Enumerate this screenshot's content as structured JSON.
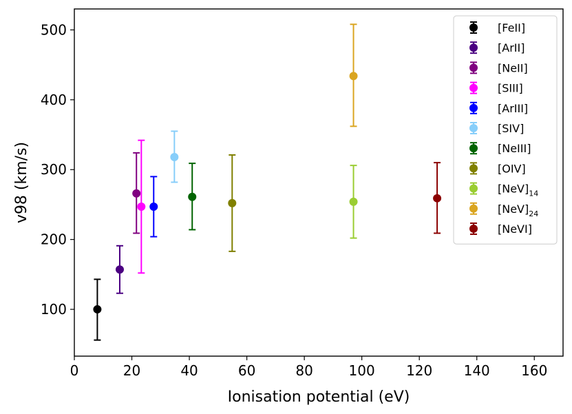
{
  "chart_data": {
    "type": "scatter",
    "title": "",
    "xlabel": "Ionisation potential (eV)",
    "ylabel": "v98 (km/s)",
    "xlim": [
      0,
      170
    ],
    "ylim": [
      33,
      530
    ],
    "xticks": [
      0,
      20,
      40,
      60,
      80,
      100,
      120,
      140,
      160
    ],
    "yticks": [
      100,
      200,
      300,
      400,
      500
    ],
    "grid": false,
    "legend_position": "top-right",
    "series": [
      {
        "name": "[FeII]",
        "sub": "",
        "color": "#000000",
        "x": 8,
        "y": 100,
        "ylow": 56,
        "yhigh": 143
      },
      {
        "name": "[ArII]",
        "sub": "",
        "color": "#4b0082",
        "x": 15.8,
        "y": 157,
        "ylow": 123,
        "yhigh": 191
      },
      {
        "name": "[NeII]",
        "sub": "",
        "color": "#800080",
        "x": 21.6,
        "y": 266,
        "ylow": 209,
        "yhigh": 324
      },
      {
        "name": "[SIII]",
        "sub": "",
        "color": "#ff00ff",
        "x": 23.3,
        "y": 247,
        "ylow": 152,
        "yhigh": 342
      },
      {
        "name": "[ArIII]",
        "sub": "",
        "color": "#0000ff",
        "x": 27.6,
        "y": 247,
        "ylow": 204,
        "yhigh": 290
      },
      {
        "name": "[SIV]",
        "sub": "",
        "color": "#87cefa",
        "x": 34.8,
        "y": 318,
        "ylow": 282,
        "yhigh": 355
      },
      {
        "name": "[NeIII]",
        "sub": "",
        "color": "#006400",
        "x": 41,
        "y": 261,
        "ylow": 214,
        "yhigh": 309
      },
      {
        "name": "[OIV]",
        "sub": "",
        "color": "#808000",
        "x": 54.9,
        "y": 252,
        "ylow": 183,
        "yhigh": 321
      },
      {
        "name": "[NeV]",
        "sub": "14",
        "color": "#9acd32",
        "x": 97.1,
        "y": 254,
        "ylow": 202,
        "yhigh": 306
      },
      {
        "name": "[NeV]",
        "sub": "24",
        "color": "#daa520",
        "x": 97.1,
        "y": 434,
        "ylow": 362,
        "yhigh": 508
      },
      {
        "name": "[NeVI]",
        "sub": "",
        "color": "#8b0000",
        "x": 126.2,
        "y": 259,
        "ylow": 209,
        "yhigh": 310
      }
    ]
  }
}
